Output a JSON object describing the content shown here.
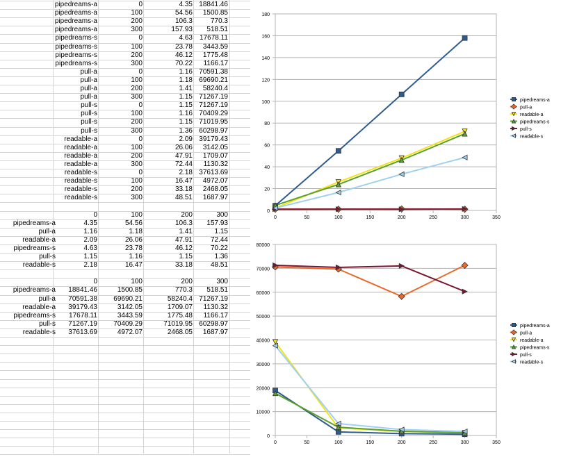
{
  "sheet": {
    "rows": [
      [
        "pipedreams-a",
        "0",
        "4.35",
        "18841.46"
      ],
      [
        "pipedreams-a",
        "100",
        "54.56",
        "1500.85"
      ],
      [
        "pipedreams-a",
        "200",
        "106.3",
        "770.3"
      ],
      [
        "pipedreams-a",
        "300",
        "157.93",
        "518.51"
      ],
      [
        "pipedreams-s",
        "0",
        "4.63",
        "17678.11"
      ],
      [
        "pipedreams-s",
        "100",
        "23.78",
        "3443.59"
      ],
      [
        "pipedreams-s",
        "200",
        "46.12",
        "1775.48"
      ],
      [
        "pipedreams-s",
        "300",
        "70.22",
        "1166.17"
      ],
      [
        "pull-a",
        "0",
        "1.16",
        "70591.38"
      ],
      [
        "pull-a",
        "100",
        "1.18",
        "69690.21"
      ],
      [
        "pull-a",
        "200",
        "1.41",
        "58240.4"
      ],
      [
        "pull-a",
        "300",
        "1.15",
        "71267.19"
      ],
      [
        "pull-s",
        "0",
        "1.15",
        "71267.19"
      ],
      [
        "pull-s",
        "100",
        "1.16",
        "70409.29"
      ],
      [
        "pull-s",
        "200",
        "1.15",
        "71019.95"
      ],
      [
        "pull-s",
        "300",
        "1.36",
        "60298.97"
      ],
      [
        "readable-a",
        "0",
        "2.09",
        "39179.43"
      ],
      [
        "readable-a",
        "100",
        "26.06",
        "3142.05"
      ],
      [
        "readable-a",
        "200",
        "47.91",
        "1709.07"
      ],
      [
        "readable-a",
        "300",
        "72.44",
        "1130.32"
      ],
      [
        "readable-s",
        "0",
        "2.18",
        "37613.69"
      ],
      [
        "readable-s",
        "100",
        "16.47",
        "4972.07"
      ],
      [
        "readable-s",
        "200",
        "33.18",
        "2468.05"
      ],
      [
        "readable-s",
        "300",
        "48.51",
        "1687.97"
      ],
      [
        "",
        "",
        "",
        ""
      ],
      [
        "",
        "0",
        "100",
        "200",
        "300"
      ],
      [
        "pipedreams-a",
        "4.35",
        "54.56",
        "106.3",
        "157.93"
      ],
      [
        "pull-a",
        "1.16",
        "1.18",
        "1.41",
        "1.15"
      ],
      [
        "readable-a",
        "2.09",
        "26.06",
        "47.91",
        "72.44"
      ],
      [
        "pipedreams-s",
        "4.63",
        "23.78",
        "46.12",
        "70.22"
      ],
      [
        "pull-s",
        "1.15",
        "1.16",
        "1.15",
        "1.36"
      ],
      [
        "readable-s",
        "2.18",
        "16.47",
        "33.18",
        "48.51"
      ],
      [
        "",
        "",
        "",
        ""
      ],
      [
        "",
        "0",
        "100",
        "200",
        "300"
      ],
      [
        "pipedreams-a",
        "18841.46",
        "1500.85",
        "770.3",
        "518.51"
      ],
      [
        "pull-a",
        "70591.38",
        "69690.21",
        "58240.4",
        "71267.19"
      ],
      [
        "readable-a",
        "39179.43",
        "3142.05",
        "1709.07",
        "1130.32"
      ],
      [
        "pipedreams-s",
        "17678.11",
        "3443.59",
        "1775.48",
        "1166.17"
      ],
      [
        "pull-s",
        "71267.19",
        "70409.29",
        "71019.95",
        "60298.97"
      ],
      [
        "readable-s",
        "37613.69",
        "4972.07",
        "2468.05",
        "1687.97"
      ]
    ]
  },
  "chart_data": [
    {
      "type": "line",
      "title": "",
      "xlabel": "",
      "ylabel": "",
      "x": [
        0,
        100,
        200,
        300
      ],
      "xlim": [
        0,
        350
      ],
      "ylim": [
        0,
        180
      ],
      "xticks": [
        "0",
        "50",
        "100",
        "150",
        "200",
        "250",
        "300",
        "350"
      ],
      "yticks": [
        "0",
        "20",
        "40",
        "60",
        "80",
        "100",
        "120",
        "140",
        "160",
        "180"
      ],
      "grid": true,
      "legend": "right",
      "series": [
        {
          "name": "pipedreams-a",
          "values": [
            4.35,
            54.56,
            106.3,
            157.93
          ],
          "color": "#2e5b8e",
          "marker": "square"
        },
        {
          "name": "pull-a",
          "values": [
            1.16,
            1.18,
            1.41,
            1.15
          ],
          "color": "#e86a2b",
          "marker": "diamond"
        },
        {
          "name": "readable-a",
          "values": [
            2.09,
            26.06,
            47.91,
            72.44
          ],
          "color": "#f2e21b",
          "marker": "triangle-down"
        },
        {
          "name": "pipedreams-s",
          "values": [
            4.63,
            23.78,
            46.12,
            70.22
          ],
          "color": "#5aa02c",
          "marker": "triangle-up"
        },
        {
          "name": "pull-s",
          "values": [
            1.15,
            1.16,
            1.15,
            1.36
          ],
          "color": "#7a1630",
          "marker": "triangle-right"
        },
        {
          "name": "readable-s",
          "values": [
            2.18,
            16.47,
            33.18,
            48.51
          ],
          "color": "#9fd0f2",
          "marker": "triangle-left"
        }
      ]
    },
    {
      "type": "line",
      "title": "",
      "xlabel": "",
      "ylabel": "",
      "x": [
        0,
        100,
        200,
        300
      ],
      "xlim": [
        0,
        350
      ],
      "ylim": [
        0,
        80000
      ],
      "xticks": [
        "0",
        "50",
        "100",
        "150",
        "200",
        "250",
        "300",
        "350"
      ],
      "yticks": [
        "0",
        "10000",
        "20000",
        "30000",
        "40000",
        "50000",
        "60000",
        "70000",
        "80000"
      ],
      "grid": true,
      "legend": "right",
      "series": [
        {
          "name": "pipedreams-a",
          "values": [
            18841.46,
            1500.85,
            770.3,
            518.51
          ],
          "color": "#2e5b8e",
          "marker": "square"
        },
        {
          "name": "pull-a",
          "values": [
            70591.38,
            69690.21,
            58240.4,
            71267.19
          ],
          "color": "#e86a2b",
          "marker": "diamond"
        },
        {
          "name": "readable-a",
          "values": [
            39179.43,
            3142.05,
            1709.07,
            1130.32
          ],
          "color": "#f2e21b",
          "marker": "triangle-down"
        },
        {
          "name": "pipedreams-s",
          "values": [
            17678.11,
            3443.59,
            1775.48,
            1166.17
          ],
          "color": "#5aa02c",
          "marker": "triangle-up"
        },
        {
          "name": "pull-s",
          "values": [
            71267.19,
            70409.29,
            71019.95,
            60298.97
          ],
          "color": "#7a1630",
          "marker": "triangle-right"
        },
        {
          "name": "readable-s",
          "values": [
            37613.69,
            4972.07,
            2468.05,
            1687.97
          ],
          "color": "#9fd0f2",
          "marker": "triangle-left"
        }
      ]
    }
  ]
}
